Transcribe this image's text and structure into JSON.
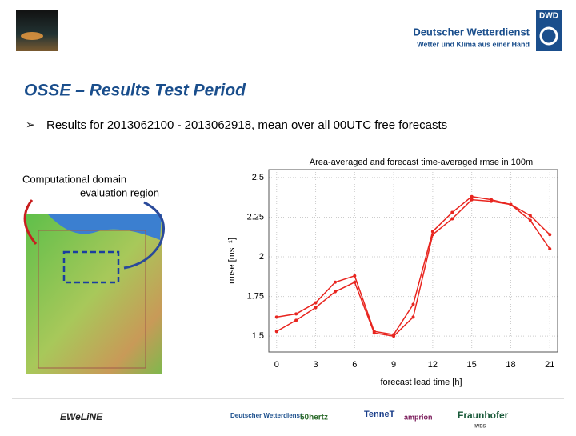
{
  "header": {
    "logo": "DWD",
    "org": "Deutscher Wetterdienst",
    "slogan": "Wetter und Klima aus einer Hand"
  },
  "slide": {
    "title": "OSSE – Results Test Period",
    "bullet": "Results for 2013062100 - 2013062918, mean over all 00UTC free forecasts",
    "map_label_1": "Computational domain",
    "map_label_2": "evaluation region"
  },
  "footer": {
    "logos": [
      "EWeLiNE",
      "Deutscher Wetterdienst",
      "50hertz",
      "TenneT",
      "amprion",
      "Fraunhofer",
      "IWES"
    ]
  },
  "chart_data": {
    "type": "line",
    "title": "Area-averaged and forecast time-averaged rmse in 100m",
    "x_label": "forecast lead time [h]",
    "y_label": "rmse [ms⁻¹]",
    "x": [
      0,
      1.5,
      3,
      4.5,
      6,
      7.5,
      9,
      10.5,
      12,
      13.5,
      15,
      16.5,
      18,
      19.5,
      21
    ],
    "series": [
      {
        "color": "#e8251f",
        "values": [
          1.62,
          1.64,
          1.71,
          1.84,
          1.88,
          1.53,
          1.51,
          1.7,
          2.16,
          2.28,
          2.38,
          2.36,
          2.33,
          2.26,
          2.14
        ]
      },
      {
        "color": "#e8251f",
        "values": [
          1.53,
          1.6,
          1.68,
          1.78,
          1.84,
          1.52,
          1.5,
          1.62,
          2.14,
          2.24,
          2.36,
          2.35,
          2.33,
          2.23,
          2.05
        ]
      }
    ],
    "xlim": [
      -0.6,
      21.6
    ],
    "xticks": [
      0,
      3,
      6,
      9,
      12,
      15,
      18,
      21
    ],
    "ylim": [
      1.4,
      2.55
    ],
    "yticks": [
      1.5,
      1.75,
      2,
      2.25,
      2.5
    ],
    "grid": true
  }
}
